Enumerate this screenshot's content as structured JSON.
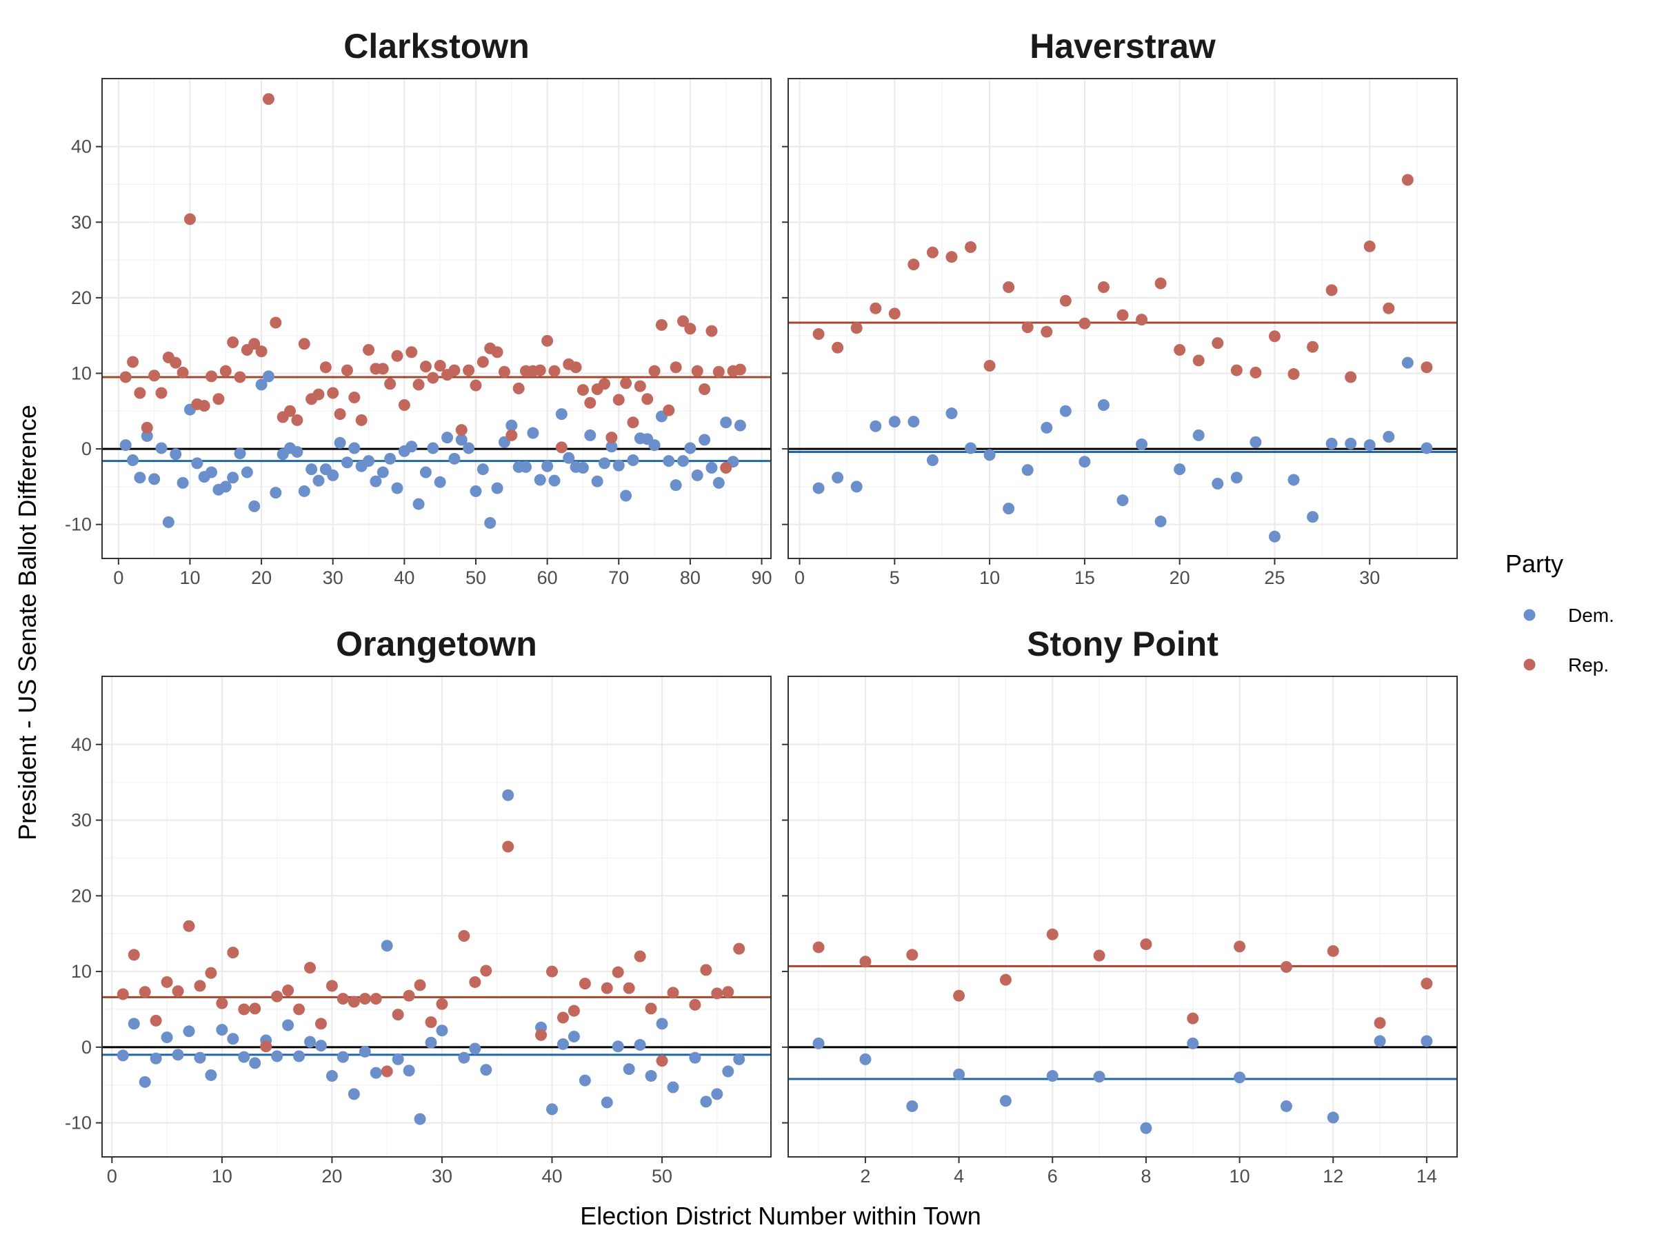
{
  "chart_data": {
    "type": "scatter",
    "xlabel": "Election District Number within Town",
    "ylabel": "President - US Senate Ballot Difference",
    "ylim": [
      -14.5,
      49
    ],
    "y_ticks": [
      -10,
      0,
      10,
      20,
      30,
      40
    ],
    "legend": {
      "title": "Party",
      "placement": "right",
      "items": [
        {
          "label": "Dem.",
          "color": "#6A8FCB"
        },
        {
          "label": "Rep.",
          "color": "#C1675C"
        }
      ]
    },
    "colors": {
      "dem_point": "#6A8FCB",
      "rep_point": "#C1675C",
      "dem_line": "#1F66A6",
      "rep_line": "#A5462F",
      "zero_line": "#000000"
    },
    "panels": [
      {
        "title": "Clarkstown",
        "xlim": [
          -2.3,
          91.3
        ],
        "x_ticks": [
          0,
          10,
          20,
          30,
          40,
          50,
          60,
          70,
          80,
          90
        ],
        "dem_mean": -1.6,
        "rep_mean": 9.5,
        "series": [
          {
            "name": "Dem.",
            "x": [
              1,
              2,
              3,
              4,
              5,
              6,
              7,
              8,
              9,
              10,
              11,
              12,
              13,
              14,
              15,
              16,
              17,
              18,
              19,
              20,
              21,
              22,
              23,
              24,
              25,
              26,
              27,
              28,
              29,
              30,
              31,
              32,
              33,
              34,
              35,
              36,
              37,
              38,
              39,
              40,
              41,
              42,
              43,
              44,
              45,
              46,
              47,
              48,
              49,
              50,
              51,
              52,
              53,
              54,
              55,
              56,
              57,
              58,
              59,
              60,
              61,
              62,
              63,
              64,
              65,
              66,
              67,
              68,
              69,
              70,
              71,
              72,
              73,
              74,
              75,
              76,
              77,
              78,
              79,
              80,
              81,
              82,
              83,
              84,
              85,
              86,
              87
            ],
            "y": [
              0.5,
              -1.5,
              -3.8,
              1.7,
              -4.0,
              0.1,
              -9.7,
              -0.7,
              -4.5,
              5.2,
              -1.9,
              -3.7,
              -3.1,
              -5.4,
              -5.0,
              -3.8,
              -0.6,
              -3.1,
              -7.6,
              8.5,
              9.6,
              -5.8,
              -0.7,
              0.1,
              -0.4,
              -5.6,
              -2.7,
              -4.2,
              -2.7,
              -3.5,
              0.8,
              -1.8,
              0.1,
              -2.3,
              -1.6,
              -4.3,
              -3.1,
              -1.3,
              -5.2,
              -0.3,
              0.3,
              -7.3,
              -3.1,
              0.1,
              -4.4,
              1.5,
              -1.3,
              1.2,
              0.1,
              -5.6,
              -2.7,
              -9.8,
              -5.2,
              0.9,
              3.1,
              -2.4,
              -2.4,
              2.1,
              -4.1,
              -2.3,
              -4.2,
              4.6,
              -1.2,
              -2.4,
              -2.5,
              1.8,
              -4.3,
              -1.9,
              0.3,
              -2.2,
              -6.2,
              -1.5,
              1.4,
              1.3,
              0.5,
              4.3,
              -1.6,
              -4.8,
              -1.6,
              0.1,
              -3.5,
              1.2,
              -2.5,
              -4.5,
              3.5,
              -1.7,
              3.1
            ]
          },
          {
            "name": "Rep.",
            "x": [
              1,
              2,
              3,
              4,
              5,
              6,
              7,
              8,
              9,
              10,
              11,
              12,
              13,
              14,
              15,
              16,
              17,
              18,
              19,
              20,
              21,
              22,
              23,
              24,
              25,
              26,
              27,
              28,
              29,
              30,
              31,
              32,
              33,
              34,
              35,
              36,
              37,
              38,
              39,
              40,
              41,
              42,
              43,
              44,
              45,
              46,
              47,
              48,
              49,
              50,
              51,
              52,
              53,
              54,
              55,
              56,
              57,
              58,
              59,
              60,
              61,
              62,
              63,
              64,
              65,
              66,
              67,
              68,
              69,
              70,
              71,
              72,
              73,
              74,
              75,
              76,
              77,
              78,
              79,
              80,
              81,
              82,
              83,
              84,
              85,
              86,
              87
            ],
            "y": [
              9.5,
              11.5,
              7.4,
              2.8,
              9.7,
              7.4,
              12.1,
              11.4,
              10.1,
              30.4,
              5.9,
              5.7,
              9.6,
              6.6,
              10.3,
              14.1,
              9.5,
              13.1,
              13.9,
              12.9,
              46.3,
              16.7,
              4.2,
              5.0,
              3.8,
              13.9,
              6.6,
              7.2,
              10.8,
              7.4,
              4.6,
              10.4,
              6.8,
              3.8,
              13.1,
              10.6,
              10.6,
              8.6,
              12.3,
              5.8,
              12.8,
              8.5,
              10.9,
              9.4,
              11.0,
              9.8,
              10.4,
              2.5,
              10.4,
              8.4,
              11.5,
              13.3,
              12.8,
              10.2,
              1.8,
              8.0,
              10.3,
              10.3,
              10.4,
              14.3,
              10.3,
              0.2,
              11.2,
              10.8,
              7.8,
              6.1,
              7.9,
              8.6,
              1.5,
              6.5,
              8.7,
              3.5,
              8.3,
              6.6,
              10.3,
              16.4,
              5.1,
              10.8,
              16.9,
              15.9,
              10.3,
              7.9,
              15.6,
              10.2,
              -2.5,
              10.3,
              10.5
            ]
          }
        ]
      },
      {
        "title": "Haverstraw",
        "xlim": [
          -0.6,
          34.6
        ],
        "x_ticks": [
          0,
          5,
          10,
          15,
          20,
          25,
          30
        ],
        "dem_mean": -0.4,
        "rep_mean": 16.7,
        "series": [
          {
            "name": "Dem.",
            "x": [
              1,
              2,
              3,
              4,
              5,
              6,
              7,
              8,
              9,
              10,
              11,
              12,
              13,
              14,
              15,
              16,
              17,
              18,
              19,
              20,
              21,
              22,
              23,
              24,
              25,
              26,
              27,
              28,
              29,
              30,
              31,
              32,
              33
            ],
            "y": [
              -5.2,
              -3.8,
              -5.0,
              3.0,
              3.6,
              3.6,
              -1.5,
              4.7,
              0.1,
              -0.8,
              -7.9,
              -2.8,
              2.8,
              5.0,
              -1.7,
              5.8,
              -6.8,
              0.6,
              -9.6,
              -2.7,
              1.8,
              -4.6,
              -3.8,
              0.9,
              -11.6,
              -4.1,
              -9.0,
              0.7,
              0.7,
              0.5,
              1.6,
              11.4,
              0.1
            ]
          },
          {
            "name": "Rep.",
            "x": [
              1,
              2,
              3,
              4,
              5,
              6,
              7,
              8,
              9,
              10,
              11,
              12,
              13,
              14,
              15,
              16,
              17,
              18,
              19,
              20,
              21,
              22,
              23,
              24,
              25,
              26,
              27,
              28,
              29,
              30,
              31,
              32,
              33
            ],
            "y": [
              15.2,
              13.4,
              16.0,
              18.6,
              17.9,
              24.4,
              26.0,
              25.4,
              26.7,
              11.0,
              21.4,
              16.1,
              15.5,
              19.6,
              16.6,
              21.4,
              17.7,
              17.1,
              21.9,
              13.1,
              11.7,
              14.0,
              10.4,
              10.1,
              14.9,
              9.9,
              13.5,
              21.0,
              9.5,
              26.8,
              18.6,
              35.6,
              10.8
            ]
          }
        ]
      },
      {
        "title": "Orangetown",
        "xlim": [
          -0.9,
          59.9
        ],
        "x_ticks": [
          0,
          10,
          20,
          30,
          40,
          50
        ],
        "dem_mean": -1.0,
        "rep_mean": 6.6,
        "series": [
          {
            "name": "Dem.",
            "x": [
              1,
              2,
              3,
              4,
              5,
              6,
              7,
              8,
              9,
              10,
              11,
              12,
              13,
              14,
              15,
              16,
              17,
              18,
              19,
              20,
              21,
              22,
              23,
              24,
              25,
              26,
              27,
              28,
              29,
              30,
              32,
              33,
              34,
              36,
              39,
              40,
              41,
              42,
              43,
              45,
              46,
              47,
              48,
              49,
              50,
              51,
              53,
              54,
              55,
              56,
              57
            ],
            "y": [
              -1.1,
              3.1,
              -4.6,
              -1.5,
              1.3,
              -1.0,
              2.1,
              -1.4,
              -3.7,
              2.3,
              1.1,
              -1.3,
              -2.1,
              0.9,
              -1.2,
              2.9,
              -1.2,
              0.7,
              0.2,
              -3.8,
              -1.3,
              -6.2,
              -0.6,
              -3.4,
              13.4,
              -1.6,
              -3.1,
              -9.5,
              0.6,
              2.2,
              -1.4,
              -0.2,
              -3.0,
              33.3,
              2.6,
              -8.2,
              0.4,
              1.4,
              -4.4,
              -7.3,
              0.1,
              -2.9,
              0.3,
              -3.8,
              3.1,
              -5.3,
              -1.4,
              -7.2,
              -6.2,
              -3.2,
              -1.6
            ]
          },
          {
            "name": "Rep.",
            "x": [
              1,
              2,
              3,
              4,
              5,
              6,
              7,
              8,
              9,
              10,
              11,
              12,
              13,
              14,
              15,
              16,
              17,
              18,
              19,
              20,
              21,
              22,
              23,
              24,
              25,
              26,
              27,
              28,
              29,
              30,
              32,
              33,
              34,
              36,
              39,
              40,
              41,
              42,
              43,
              45,
              46,
              47,
              48,
              49,
              50,
              51,
              53,
              54,
              55,
              56,
              57
            ],
            "y": [
              7.0,
              12.2,
              7.3,
              3.5,
              8.6,
              7.4,
              16.0,
              8.1,
              9.8,
              5.8,
              12.5,
              5.0,
              5.1,
              0.1,
              6.7,
              7.5,
              5.0,
              10.5,
              3.1,
              8.1,
              6.4,
              6.0,
              6.4,
              6.4,
              -3.2,
              4.3,
              6.8,
              8.2,
              3.3,
              5.7,
              14.7,
              8.6,
              10.1,
              26.5,
              1.6,
              10.0,
              3.9,
              4.8,
              8.4,
              7.8,
              9.9,
              7.8,
              12.0,
              5.1,
              -1.8,
              7.2,
              5.6,
              10.2,
              7.1,
              7.3,
              13.0
            ]
          }
        ]
      },
      {
        "title": "Stony Point",
        "xlim": [
          0.35,
          14.65
        ],
        "x_ticks": [
          2,
          4,
          6,
          8,
          10,
          12,
          14
        ],
        "dem_mean": -4.2,
        "rep_mean": 10.7,
        "series": [
          {
            "name": "Dem.",
            "x": [
              1,
              2,
              3,
              4,
              5,
              6,
              7,
              8,
              9,
              10,
              11,
              12,
              13,
              14
            ],
            "y": [
              0.5,
              -1.6,
              -7.8,
              -3.6,
              -7.1,
              -3.8,
              -3.9,
              -10.7,
              0.5,
              -4.0,
              -7.8,
              -9.3,
              0.8,
              0.8
            ]
          },
          {
            "name": "Rep.",
            "x": [
              1,
              2,
              3,
              4,
              5,
              6,
              7,
              8,
              9,
              10,
              11,
              12,
              13,
              14
            ],
            "y": [
              13.2,
              11.3,
              12.2,
              6.8,
              8.9,
              14.9,
              12.1,
              13.6,
              3.8,
              13.3,
              10.6,
              12.7,
              3.2,
              8.4
            ]
          }
        ]
      }
    ]
  }
}
